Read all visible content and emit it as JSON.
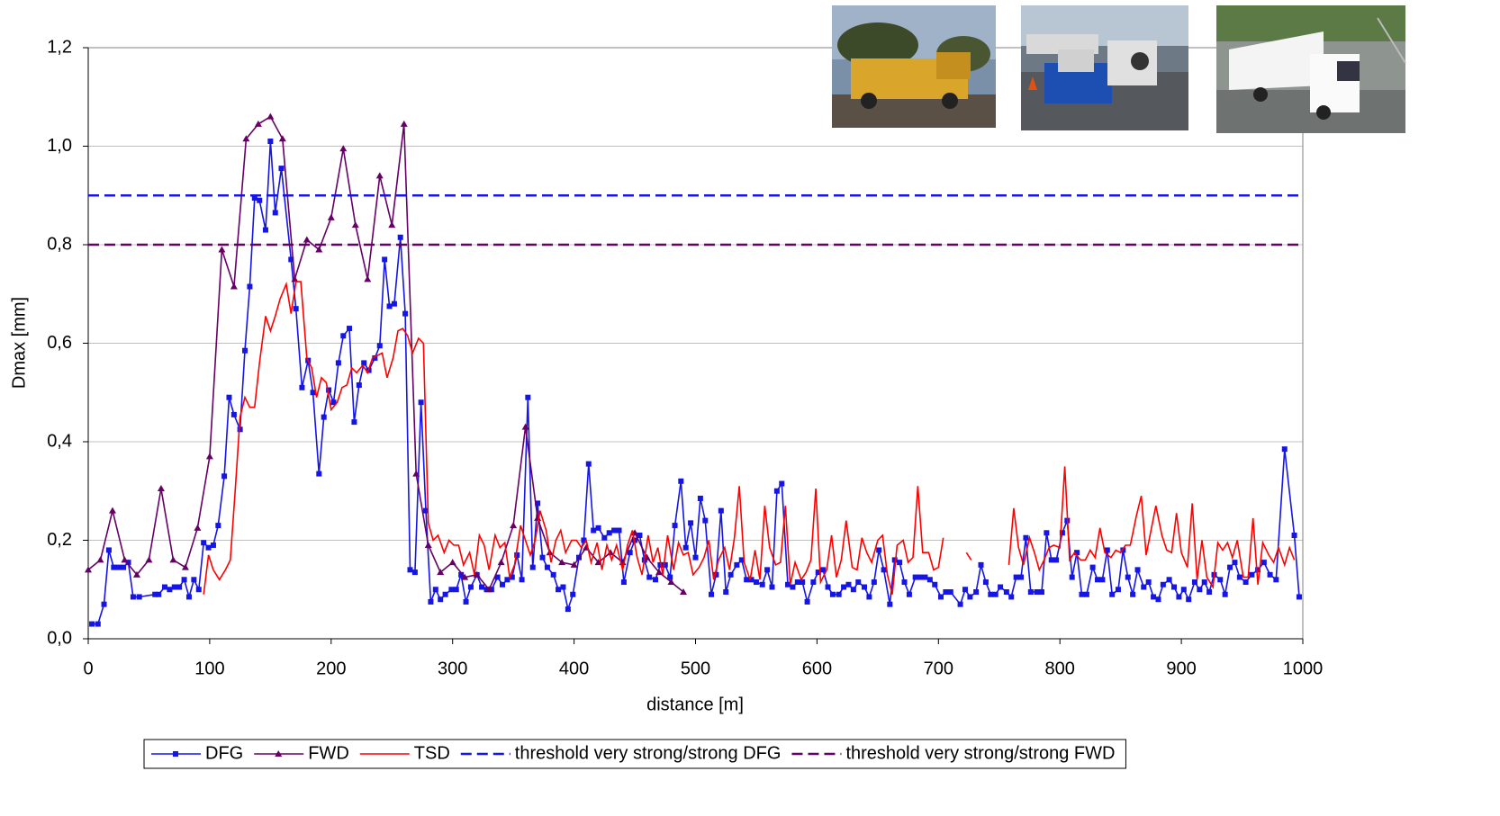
{
  "chart_data": {
    "type": "line",
    "xlabel": "distance [m]",
    "ylabel": "Dmax [mm]",
    "xlim": [
      0,
      1000
    ],
    "xticks": [
      0,
      100,
      200,
      300,
      400,
      500,
      600,
      700,
      800,
      900,
      1000
    ],
    "ylim": [
      0,
      1.2
    ],
    "yticks": [
      {
        "value": 0,
        "label": "0,0"
      },
      {
        "value": 0.2,
        "label": "0,2"
      },
      {
        "value": 0.4,
        "label": "0,4"
      },
      {
        "value": 0.6,
        "label": "0,6"
      },
      {
        "value": 0.8,
        "label": "0,8"
      },
      {
        "value": 1.0,
        "label": "1,0"
      },
      {
        "value": 1.2,
        "label": "1,2"
      }
    ],
    "grid": true,
    "legend": "bottom",
    "series": [
      {
        "name": "DFG",
        "color": "#1515e6",
        "marker": "square",
        "x": [
          3,
          8,
          13,
          17,
          21,
          25,
          29,
          33,
          37,
          42,
          55,
          58,
          63,
          67,
          71,
          75,
          79,
          83,
          87,
          91,
          95,
          99,
          103,
          107,
          112,
          116,
          120,
          125,
          129,
          133,
          137,
          141,
          146,
          150,
          154,
          159,
          167,
          171,
          176,
          181,
          185,
          190,
          194,
          198,
          202,
          206,
          210,
          215,
          219,
          223,
          227,
          231,
          236,
          240,
          244,
          248,
          252,
          257,
          261,
          265,
          269,
          274,
          278,
          282,
          286,
          290,
          294,
          299,
          303,
          307,
          311,
          315,
          320,
          324,
          328,
          332,
          337,
          341,
          345,
          349,
          353,
          357,
          362,
          366,
          370,
          374,
          378,
          383,
          387,
          391,
          395,
          399,
          404,
          408,
          412,
          416,
          420,
          425,
          429,
          433,
          437,
          441,
          446,
          450,
          454,
          458,
          462,
          467,
          471,
          475,
          479,
          483,
          488,
          492,
          496,
          500,
          504,
          508,
          513,
          517,
          521,
          525,
          529,
          534,
          538,
          542,
          546,
          550,
          555,
          559,
          563,
          567,
          571,
          576,
          580,
          584,
          588,
          592,
          597,
          601,
          605,
          609,
          613,
          618,
          622,
          626,
          630,
          634,
          639,
          643,
          647,
          651,
          655,
          660,
          664,
          668,
          672,
          676,
          681,
          685,
          689,
          693,
          697,
          702,
          706,
          710,
          718,
          722,
          726,
          731,
          735,
          739,
          743,
          747,
          751,
          756,
          760,
          764,
          768,
          772,
          776,
          781,
          785,
          789,
          793,
          797,
          802,
          806,
          810,
          814,
          818,
          822,
          827,
          831,
          835,
          839,
          843,
          848,
          852,
          856,
          860,
          864,
          869,
          873,
          877,
          881,
          885,
          890,
          894,
          898,
          902,
          906,
          911,
          915,
          919,
          923,
          927,
          932,
          936,
          940,
          944,
          948,
          953,
          958,
          963,
          968,
          973,
          978,
          985,
          993,
          997
        ],
        "values": [
          0.03,
          0.03,
          0.07,
          0.18,
          0.145,
          0.145,
          0.145,
          0.155,
          0.085,
          0.085,
          0.09,
          0.09,
          0.105,
          0.1,
          0.105,
          0.105,
          0.12,
          0.085,
          0.12,
          0.1,
          0.195,
          0.185,
          0.19,
          0.23,
          0.33,
          0.49,
          0.455,
          0.425,
          0.585,
          0.715,
          0.895,
          0.89,
          0.83,
          1.01,
          0.865,
          0.955,
          0.77,
          0.67,
          0.51,
          0.565,
          0.5,
          0.335,
          0.45,
          0.505,
          0.48,
          0.56,
          0.615,
          0.63,
          0.44,
          0.515,
          0.56,
          0.545,
          0.57,
          0.595,
          0.77,
          0.675,
          0.68,
          0.815,
          0.66,
          0.14,
          0.135,
          0.48,
          0.26,
          0.075,
          0.1,
          0.08,
          0.09,
          0.1,
          0.1,
          0.13,
          0.075,
          0.105,
          0.13,
          0.105,
          0.1,
          0.1,
          0.125,
          0.11,
          0.12,
          0.125,
          0.17,
          0.12,
          0.49,
          0.145,
          0.275,
          0.165,
          0.145,
          0.13,
          0.1,
          0.105,
          0.06,
          0.09,
          0.165,
          0.2,
          0.355,
          0.22,
          0.225,
          0.205,
          0.215,
          0.22,
          0.22,
          0.115,
          0.175,
          0.2,
          0.21,
          0.16,
          0.125,
          0.12,
          0.15,
          0.15,
          0.125,
          0.23,
          0.32,
          0.185,
          0.235,
          0.165,
          0.285,
          0.24,
          0.09,
          0.13,
          0.26,
          0.095,
          0.13,
          0.15,
          0.16,
          0.12,
          0.12,
          0.115,
          0.11,
          0.14,
          0.105,
          0.3,
          0.315,
          0.11,
          0.105,
          0.115,
          0.115,
          0.075,
          0.115,
          0.135,
          0.14,
          0.105,
          0.09,
          0.09,
          0.105,
          0.11,
          0.1,
          0.115,
          0.105,
          0.085,
          0.115,
          0.18,
          0.14,
          0.07,
          0.16,
          0.155,
          0.115,
          0.09,
          0.125,
          0.125,
          0.125,
          0.12,
          0.11,
          0.085,
          0.095,
          0.095,
          0.07,
          0.1,
          0.085,
          0.095,
          0.15,
          0.115,
          0.09,
          0.09,
          0.105,
          0.095,
          0.085,
          0.125,
          0.125,
          0.205,
          0.095,
          0.095,
          0.095,
          0.215,
          0.16,
          0.16,
          0.215,
          0.24,
          0.125,
          0.175,
          0.09,
          0.09,
          0.145,
          0.12,
          0.12,
          0.18,
          0.09,
          0.1,
          0.18,
          0.125,
          0.09,
          0.14,
          0.105,
          0.115,
          0.085,
          0.08,
          0.11,
          0.12,
          0.105,
          0.085,
          0.1,
          0.08,
          0.115,
          0.1,
          0.115,
          0.095,
          0.13,
          0.12,
          0.09,
          0.145,
          0.155,
          0.125,
          0.115,
          0.13,
          0.14,
          0.155,
          0.13,
          0.12,
          0.385,
          0.21,
          0.085
        ]
      },
      {
        "name": "FWD",
        "color": "#660066",
        "marker": "triangle",
        "x": [
          0,
          10,
          20,
          30,
          40,
          50,
          60,
          70,
          80,
          90,
          100,
          110,
          120,
          130,
          140,
          150,
          160,
          170,
          180,
          190,
          200,
          210,
          220,
          230,
          240,
          250,
          260,
          270,
          280,
          290,
          300,
          310,
          320,
          330,
          340,
          350,
          360,
          370,
          380,
          390,
          400,
          410,
          420,
          430,
          440,
          450,
          460,
          470,
          480,
          490
        ],
        "values": [
          0.14,
          0.16,
          0.26,
          0.16,
          0.13,
          0.16,
          0.305,
          0.16,
          0.145,
          0.225,
          0.37,
          0.79,
          0.715,
          1.015,
          1.045,
          1.06,
          1.015,
          0.73,
          0.81,
          0.79,
          0.855,
          0.995,
          0.84,
          0.73,
          0.94,
          0.84,
          1.045,
          0.335,
          0.19,
          0.135,
          0.155,
          0.125,
          0.13,
          0.1,
          0.155,
          0.23,
          0.43,
          0.245,
          0.175,
          0.155,
          0.15,
          0.185,
          0.155,
          0.175,
          0.155,
          0.215,
          0.165,
          0.135,
          0.115,
          0.095
        ]
      },
      {
        "name": "TSD",
        "color": "#ff0000",
        "x": [
          95,
          99,
          103,
          108,
          113,
          117,
          121,
          125,
          129,
          133,
          137,
          141,
          146,
          150,
          154,
          158,
          163,
          167,
          171,
          175,
          180,
          184,
          188,
          192,
          196,
          200,
          205,
          209,
          213,
          217,
          221,
          226,
          230,
          234,
          238,
          242,
          246,
          251,
          255,
          259,
          263,
          267,
          272,
          276,
          280,
          284,
          288,
          293,
          297,
          301,
          305,
          309,
          314,
          318,
          322,
          326,
          330,
          335,
          339,
          343,
          347,
          351,
          356,
          360,
          364,
          368,
          372,
          377,
          381,
          385,
          389,
          393,
          398,
          402,
          406,
          410,
          414,
          419,
          423,
          427,
          431,
          435,
          440,
          444,
          448,
          452,
          456,
          461,
          465,
          469,
          473,
          477,
          482,
          486,
          490,
          494,
          498,
          503,
          507,
          511,
          515,
          519,
          524,
          528,
          532,
          536,
          540,
          545,
          549,
          553,
          557,
          561,
          566,
          570,
          574,
          578,
          582,
          587,
          591,
          595,
          599,
          603,
          608,
          612,
          616,
          620,
          624,
          629,
          633,
          637,
          641,
          645,
          650,
          654,
          658,
          662,
          666,
          671,
          675,
          679,
          683,
          687,
          692,
          696,
          700,
          704,
          714,
          723,
          727,
          740,
          758,
          762,
          766,
          770,
          775,
          779,
          783,
          787,
          791,
          795,
          800,
          804,
          808,
          812,
          817,
          821,
          825,
          829,
          833,
          837,
          842,
          846,
          850,
          854,
          858,
          863,
          867,
          871,
          875,
          879,
          884,
          888,
          892,
          896,
          900,
          905,
          909,
          913,
          917,
          921,
          926,
          930,
          934,
          938,
          942,
          946,
          951,
          955,
          959,
          963,
          967,
          972,
          976,
          980,
          985,
          989,
          993
        ],
        "values": [
          0.09,
          0.17,
          0.14,
          0.12,
          0.14,
          0.16,
          0.3,
          0.45,
          0.49,
          0.47,
          0.47,
          0.56,
          0.655,
          0.625,
          0.655,
          0.69,
          0.72,
          0.66,
          0.725,
          0.725,
          0.57,
          0.55,
          0.49,
          0.53,
          0.52,
          0.465,
          0.48,
          0.51,
          0.515,
          0.55,
          0.54,
          0.555,
          0.54,
          0.57,
          0.575,
          0.58,
          0.53,
          0.57,
          0.625,
          0.63,
          0.615,
          0.58,
          0.61,
          0.6,
          0.235,
          0.2,
          0.21,
          0.175,
          0.2,
          0.19,
          0.19,
          0.15,
          0.175,
          0.13,
          0.21,
          0.19,
          0.14,
          0.21,
          0.185,
          0.195,
          0.125,
          0.15,
          0.23,
          0.2,
          0.17,
          0.2,
          0.26,
          0.22,
          0.155,
          0.2,
          0.22,
          0.175,
          0.2,
          0.2,
          0.185,
          0.2,
          0.155,
          0.195,
          0.14,
          0.19,
          0.16,
          0.19,
          0.14,
          0.19,
          0.22,
          0.165,
          0.13,
          0.21,
          0.155,
          0.185,
          0.13,
          0.21,
          0.14,
          0.195,
          0.17,
          0.175,
          0.13,
          0.145,
          0.165,
          0.2,
          0.12,
          0.16,
          0.185,
          0.14,
          0.205,
          0.31,
          0.155,
          0.12,
          0.18,
          0.12,
          0.27,
          0.185,
          0.15,
          0.155,
          0.27,
          0.11,
          0.155,
          0.12,
          0.135,
          0.16,
          0.305,
          0.115,
          0.14,
          0.21,
          0.125,
          0.16,
          0.24,
          0.145,
          0.14,
          0.205,
          0.175,
          0.155,
          0.2,
          0.21,
          0.13,
          0.09,
          0.19,
          0.2,
          0.155,
          0.165,
          0.31,
          0.175,
          0.175,
          0.14,
          0.145,
          0.205,
          null,
          0.175,
          0.16,
          null,
          0.15,
          0.265,
          0.185,
          0.15,
          0.205,
          0.175,
          0.14,
          0.16,
          0.185,
          0.19,
          0.185,
          0.35,
          0.16,
          0.175,
          0.16,
          0.16,
          0.18,
          0.165,
          0.225,
          0.175,
          0.165,
          0.18,
          0.175,
          0.19,
          0.19,
          0.25,
          0.29,
          0.17,
          0.22,
          0.27,
          0.21,
          0.18,
          0.175,
          0.255,
          0.175,
          0.145,
          0.275,
          0.12,
          0.2,
          0.125,
          0.105,
          0.195,
          0.18,
          0.195,
          0.165,
          0.2,
          0.125,
          0.125,
          0.245,
          0.11,
          0.195,
          0.17,
          0.155,
          0.185,
          0.15,
          0.185,
          0.16
        ]
      },
      {
        "name": "threshold very strong/strong DFG",
        "color": "#1515e6",
        "dash": true,
        "x": [
          0,
          1000
        ],
        "values": [
          0.9,
          0.9
        ]
      },
      {
        "name": "threshold very strong/strong FWD",
        "color": "#660066",
        "dash": true,
        "x": [
          0,
          1000
        ],
        "values": [
          0.8,
          0.8
        ]
      }
    ]
  }
}
